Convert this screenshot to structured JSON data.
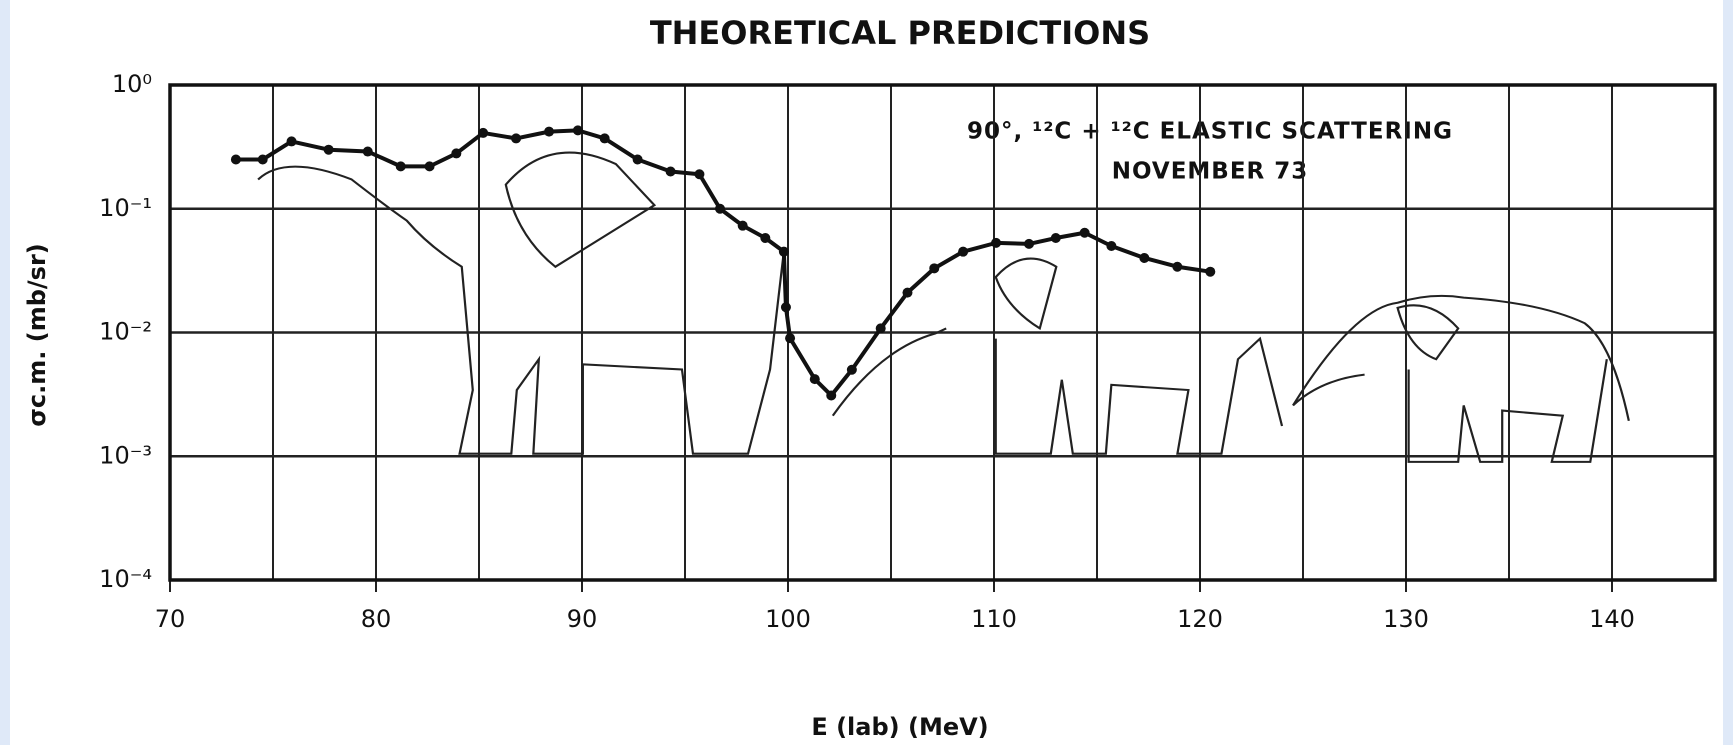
{
  "chart_data": {
    "type": "line",
    "title": "THEORETICAL PREDICTIONS",
    "annotations": [
      "90°, ¹²C + ¹²C ELASTIC SCATTERING",
      "NOVEMBER 73"
    ],
    "x_label": "E (lab) (MeV)",
    "y_label": "σc.m. (mb/sr)",
    "ylog": true,
    "grid": true,
    "xlim": [
      70,
      145
    ],
    "xticks": [
      70,
      80,
      90,
      100,
      110,
      120,
      130,
      140
    ],
    "xminor_ticks": [
      75,
      85,
      95,
      105,
      115,
      125,
      135,
      145
    ],
    "ylim": [
      0.0001,
      1
    ],
    "yticks": [
      {
        "value": 0.0001,
        "label": "10⁻⁴"
      },
      {
        "value": 0.001,
        "label": "10⁻³"
      },
      {
        "value": 0.01,
        "label": "10⁻²"
      },
      {
        "value": 0.1,
        "label": "10⁻¹"
      },
      {
        "value": 1,
        "label": "10⁰"
      }
    ],
    "x": [
      73.2,
      74.5,
      75.9,
      77.7,
      79.6,
      81.2,
      82.6,
      83.9,
      85.2,
      86.8,
      88.4,
      89.8,
      91.1,
      92.7,
      94.3,
      95.7,
      96.7,
      97.8,
      98.9,
      99.8,
      99.9,
      100.1,
      101.3,
      102.1,
      103.1,
      104.5,
      105.8,
      107.1,
      108.5,
      110.1,
      111.7,
      113.0,
      114.4,
      115.7,
      117.3,
      118.9,
      120.5
    ],
    "series": [
      {
        "color": "#111111",
        "values": [
          0.25,
          0.25,
          0.35,
          0.3,
          0.29,
          0.22,
          0.22,
          0.28,
          0.41,
          0.37,
          0.42,
          0.43,
          0.37,
          0.25,
          0.2,
          0.19,
          0.1,
          0.073,
          0.058,
          0.045,
          0.016,
          0.009,
          0.0042,
          0.0031,
          0.005,
          0.0108,
          0.021,
          0.033,
          0.045,
          0.053,
          0.052,
          0.058,
          0.064,
          0.05,
          0.04,
          0.034,
          0.031
        ]
      }
    ]
  }
}
